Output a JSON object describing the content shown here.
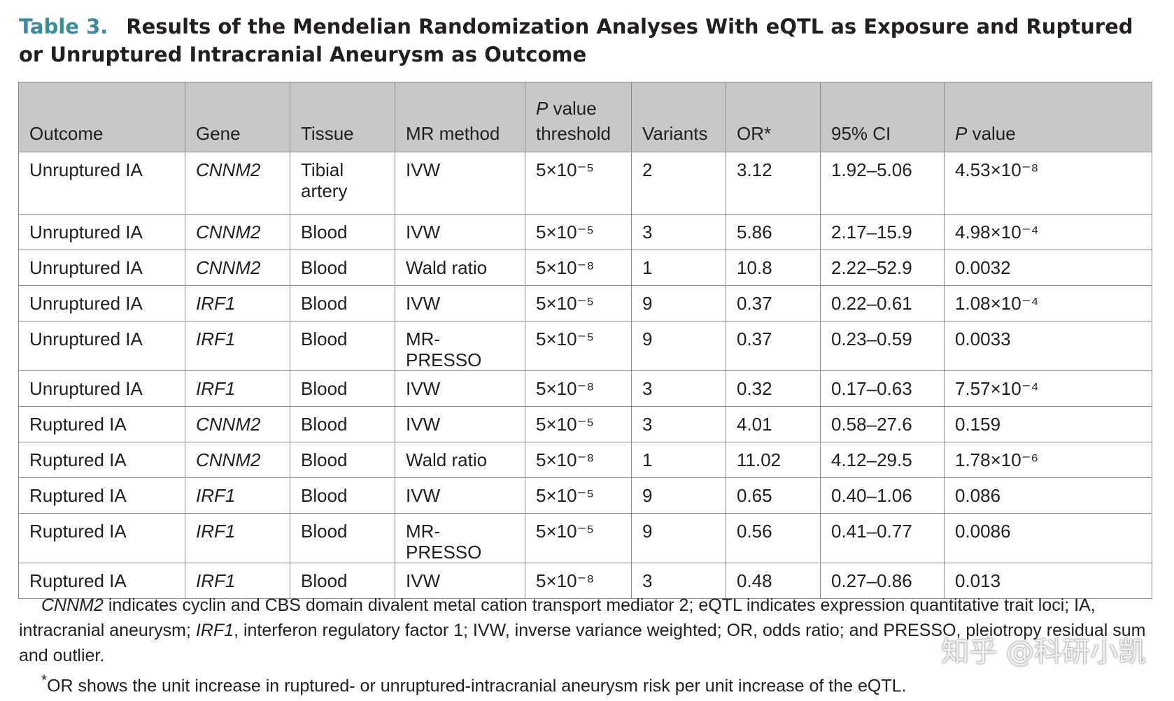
{
  "caption": {
    "label": "Table 3.",
    "title": "Results of the Mendelian Randomization Analyses With eQTL as Exposure and Ruptured or Unruptured Intracranial Aneurysm as Outcome"
  },
  "table": {
    "headers": {
      "outcome": "Outcome",
      "gene": "Gene",
      "tissue": "Tissue",
      "method": "MR method",
      "threshold_p": "P",
      "threshold_rest": " value threshold",
      "variants": "Variants",
      "or": "OR*",
      "ci": "95% CI",
      "pvalue_p": "P",
      "pvalue_rest": " value"
    },
    "rows": [
      {
        "outcome": "Unruptured IA",
        "gene": "CNNM2",
        "tissue": "Tibial artery",
        "method": "IVW",
        "threshold": "5×10⁻⁵",
        "variants": "2",
        "or": "3.12",
        "ci": "1.92–5.06",
        "p": "4.53×10⁻⁸"
      },
      {
        "outcome": "Unruptured IA",
        "gene": "CNNM2",
        "tissue": "Blood",
        "method": "IVW",
        "threshold": "5×10⁻⁵",
        "variants": "3",
        "or": "5.86",
        "ci": "2.17–15.9",
        "p": "4.98×10⁻⁴"
      },
      {
        "outcome": "Unruptured IA",
        "gene": "CNNM2",
        "tissue": "Blood",
        "method": "Wald ratio",
        "threshold": "5×10⁻⁸",
        "variants": "1",
        "or": "10.8",
        "ci": "2.22–52.9",
        "p": "0.0032"
      },
      {
        "outcome": "Unruptured IA",
        "gene": "IRF1",
        "tissue": "Blood",
        "method": "IVW",
        "threshold": "5×10⁻⁵",
        "variants": "9",
        "or": "0.37",
        "ci": "0.22–0.61",
        "p": "1.08×10⁻⁴"
      },
      {
        "outcome": "Unruptured IA",
        "gene": "IRF1",
        "tissue": "Blood",
        "method": "MR-PRESSO",
        "threshold": "5×10⁻⁵",
        "variants": "9",
        "or": "0.37",
        "ci": "0.23–0.59",
        "p": "0.0033"
      },
      {
        "outcome": "Unruptured IA",
        "gene": "IRF1",
        "tissue": "Blood",
        "method": "IVW",
        "threshold": "5×10⁻⁸",
        "variants": "3",
        "or": "0.32",
        "ci": "0.17–0.63",
        "p": "7.57×10⁻⁴"
      },
      {
        "outcome": "Ruptured IA",
        "gene": "CNNM2",
        "tissue": "Blood",
        "method": "IVW",
        "threshold": "5×10⁻⁵",
        "variants": "3",
        "or": "4.01",
        "ci": "0.58–27.6",
        "p": "0.159"
      },
      {
        "outcome": "Ruptured IA",
        "gene": "CNNM2",
        "tissue": "Blood",
        "method": "Wald ratio",
        "threshold": "5×10⁻⁸",
        "variants": "1",
        "or": "11.02",
        "ci": "4.12–29.5",
        "p": "1.78×10⁻⁶"
      },
      {
        "outcome": "Ruptured IA",
        "gene": "IRF1",
        "tissue": "Blood",
        "method": "IVW",
        "threshold": "5×10⁻⁵",
        "variants": "9",
        "or": "0.65",
        "ci": "0.40–1.06",
        "p": "0.086"
      },
      {
        "outcome": "Ruptured IA",
        "gene": "IRF1",
        "tissue": "Blood",
        "method": "MR-PRESSO",
        "threshold": "5×10⁻⁵",
        "variants": "9",
        "or": "0.56",
        "ci": "0.41–0.77",
        "p": "0.0086"
      },
      {
        "outcome": "Ruptured IA",
        "gene": "IRF1",
        "tissue": "Blood",
        "method": "IVW",
        "threshold": "5×10⁻⁸",
        "variants": "3",
        "or": "0.48",
        "ci": "0.27–0.86",
        "p": "0.013"
      }
    ]
  },
  "notes": {
    "abbrev_gene1": "CNNM2",
    "abbrev_text1": " indicates cyclin and CBS domain divalent metal cation transport mediator 2; eQTL indicates expression quantitative trait loci; IA, intracranial aneurysm; ",
    "abbrev_gene2": "IRF1",
    "abbrev_text2": ", interferon regulatory factor 1; IVW, inverse variance weighted; OR, odds ratio; and PRESSO, pleiotropy residual sum and outlier.",
    "footnote_mark": "*",
    "footnote": "OR shows the unit increase in ruptured- or unruptured-intracranial aneurysm risk per unit increase of the eQTL."
  },
  "watermark": "知乎 @科研小凯"
}
